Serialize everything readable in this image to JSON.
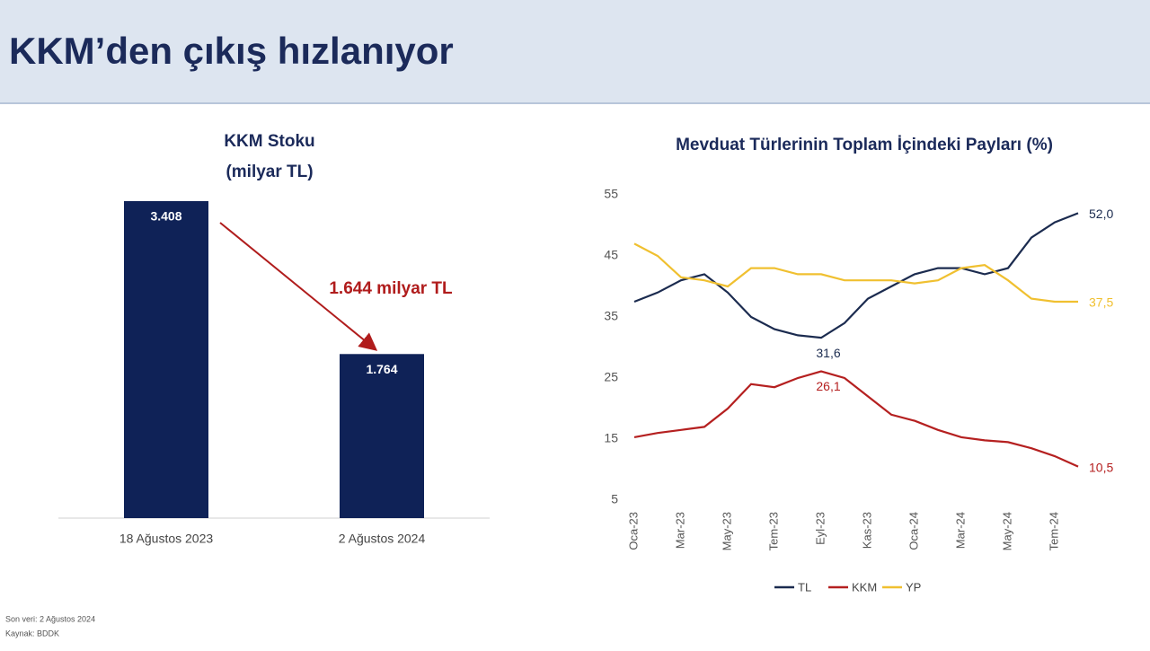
{
  "title": "KKM’den çıkış hızlanıyor",
  "notes": [
    "Son veri: 2 Ağustos 2024",
    "Kaynak: BDDK"
  ],
  "chart_data": [
    {
      "type": "bar",
      "title": "KKM Stoku",
      "subtitle": "(milyar TL)",
      "categories": [
        "18 Ağustos 2023",
        "2 Ağustos 2024"
      ],
      "values": [
        3408,
        1764
      ],
      "value_labels": [
        "3.408",
        "1.764"
      ],
      "color": "#0f2257",
      "annotation": "1.644 milyar TL",
      "annotation_color": "#b01c1c"
    },
    {
      "type": "line",
      "title": "Mevduat Türlerinin Toplam İçindeki Payları (%)",
      "categories": [
        "Oca-23",
        null,
        "Mar-23",
        null,
        "May-23",
        null,
        "Tem-23",
        null,
        "Eyl-23",
        null,
        "Kas-23",
        null,
        "Oca-24",
        null,
        "Mar-24",
        null,
        "May-24",
        null,
        "Tem-24",
        null
      ],
      "ylim": [
        5,
        55
      ],
      "yticks": [
        5,
        15,
        25,
        35,
        45,
        55
      ],
      "grid": false,
      "legend": "bottom",
      "series": [
        {
          "name": "TL",
          "color": "#1b2b4f",
          "values": [
            37.5,
            39,
            41,
            42,
            39,
            35,
            33,
            32,
            31.6,
            34,
            38,
            40,
            42,
            43,
            43,
            42,
            43,
            48,
            50.5,
            52.0
          ],
          "value_labels": [
            null,
            null,
            null,
            null,
            null,
            null,
            null,
            null,
            "31,6",
            null,
            null,
            null,
            null,
            null,
            null,
            null,
            null,
            null,
            null,
            "52,0"
          ]
        },
        {
          "name": "KKM",
          "color": "#b52020",
          "values": [
            15.3,
            16,
            16.5,
            17,
            20,
            24,
            23.5,
            25,
            26.1,
            25,
            22,
            19,
            18,
            16.5,
            15.3,
            14.8,
            14.5,
            13.5,
            12.2,
            10.5
          ],
          "value_labels": [
            null,
            null,
            null,
            null,
            null,
            null,
            null,
            null,
            "26,1",
            null,
            null,
            null,
            null,
            null,
            null,
            null,
            null,
            null,
            null,
            "10,5"
          ]
        },
        {
          "name": "YP",
          "color": "#f0c030",
          "values": [
            47,
            45,
            41.5,
            41,
            40,
            43,
            43,
            42,
            42,
            41,
            41,
            41,
            40.5,
            41,
            43,
            43.5,
            41,
            38,
            37.5,
            37.5
          ],
          "value_labels": [
            null,
            null,
            null,
            null,
            null,
            null,
            null,
            null,
            null,
            null,
            null,
            null,
            null,
            null,
            null,
            null,
            null,
            null,
            null,
            "37,5"
          ]
        }
      ]
    }
  ]
}
